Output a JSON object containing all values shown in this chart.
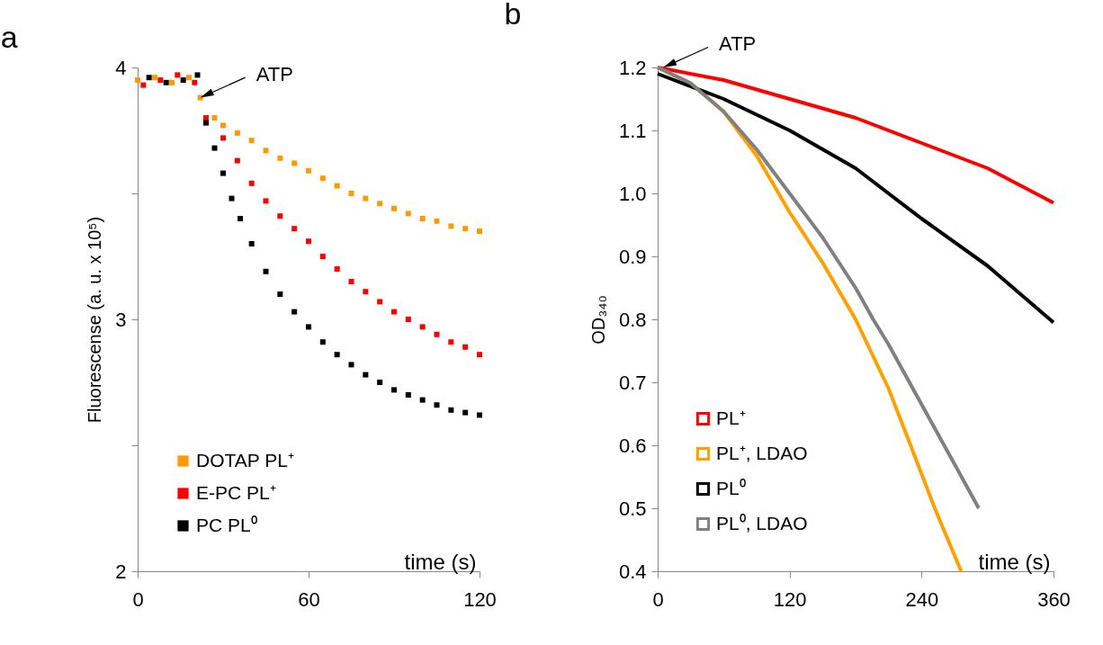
{
  "chart_data": [
    {
      "type": "scatter",
      "title": "a",
      "xlabel": "time (s)",
      "ylabel": "Fluorescense (a. u. x 10⁵)",
      "xlim": [
        0,
        120
      ],
      "ylim": [
        2,
        4
      ],
      "xticks": [
        0,
        60,
        120
      ],
      "yticks": [
        2,
        {
          "value": 2.5,
          "label": null
        },
        3,
        {
          "value": 3.5,
          "label": null
        },
        4
      ],
      "legend": "bottom left",
      "marker": "square",
      "annotations": [
        {
          "text": "ATP",
          "x": 22,
          "y": 3.88
        }
      ],
      "series": [
        {
          "name": "DOTAP PL⁺",
          "color": "#ff9900",
          "x": [
            0,
            6,
            12,
            18,
            22,
            27,
            30,
            35,
            40,
            45,
            50,
            55,
            60,
            65,
            70,
            75,
            80,
            85,
            90,
            95,
            100,
            105,
            110,
            115,
            120
          ],
          "values": [
            3.95,
            3.96,
            3.94,
            3.96,
            3.88,
            3.8,
            3.77,
            3.74,
            3.71,
            3.67,
            3.64,
            3.62,
            3.59,
            3.56,
            3.53,
            3.5,
            3.48,
            3.46,
            3.44,
            3.42,
            3.4,
            3.39,
            3.37,
            3.36,
            3.35
          ]
        },
        {
          "name": "E-PC PL⁺",
          "color": "#ff0000",
          "x": [
            2,
            8,
            14,
            20,
            24,
            30,
            35,
            40,
            45,
            50,
            55,
            60,
            65,
            70,
            75,
            80,
            85,
            90,
            95,
            100,
            105,
            110,
            115,
            120
          ],
          "values": [
            3.93,
            3.95,
            3.97,
            3.94,
            3.8,
            3.72,
            3.63,
            3.54,
            3.47,
            3.41,
            3.36,
            3.31,
            3.25,
            3.2,
            3.15,
            3.11,
            3.07,
            3.03,
            3.0,
            2.97,
            2.94,
            2.91,
            2.89,
            2.86
          ]
        },
        {
          "name": "PC PL⁰",
          "color": "#000000",
          "x": [
            4,
            10,
            16,
            21,
            24,
            27,
            30,
            33,
            36,
            40,
            45,
            50,
            55,
            60,
            65,
            70,
            75,
            80,
            85,
            90,
            95,
            100,
            105,
            110,
            115,
            120
          ],
          "values": [
            3.96,
            3.94,
            3.95,
            3.97,
            3.78,
            3.68,
            3.58,
            3.48,
            3.4,
            3.3,
            3.19,
            3.1,
            3.03,
            2.97,
            2.91,
            2.86,
            2.82,
            2.78,
            2.75,
            2.72,
            2.7,
            2.68,
            2.66,
            2.64,
            2.63,
            2.62
          ]
        }
      ]
    },
    {
      "type": "line",
      "title": "b",
      "xlabel": "time (s)",
      "ylabel": "OD₃₄₀",
      "xlim": [
        0,
        360
      ],
      "ylim": [
        0.4,
        1.2
      ],
      "xticks": [
        0,
        120,
        240,
        360
      ],
      "yticks": [
        0.4,
        0.5,
        0.6,
        0.7,
        0.8,
        0.9,
        {
          "value": 1,
          "label": "1.0"
        },
        1.1,
        1.2
      ],
      "legend": "bottom left",
      "annotations": [
        {
          "text": "ATP",
          "x": 5,
          "y": 1.2
        }
      ],
      "series": [
        {
          "name": "PL⁺",
          "color": "#ff0000",
          "x": [
            0,
            60,
            120,
            180,
            240,
            300,
            360
          ],
          "values": [
            1.2,
            1.18,
            1.15,
            1.12,
            1.08,
            1.04,
            0.985
          ]
        },
        {
          "name": "PL⁺, LDAO",
          "color": "#ffa000",
          "x": [
            0,
            30,
            60,
            90,
            120,
            150,
            180,
            210,
            230,
            252,
            276
          ],
          "values": [
            1.2,
            1.175,
            1.13,
            1.06,
            0.97,
            0.89,
            0.8,
            0.69,
            0.6,
            0.5,
            0.4
          ]
        },
        {
          "name": "PL⁰",
          "color": "#000000",
          "x": [
            0,
            60,
            120,
            180,
            240,
            300,
            360
          ],
          "values": [
            1.19,
            1.15,
            1.1,
            1.04,
            0.96,
            0.885,
            0.795
          ]
        },
        {
          "name": "PL⁰, LDAO",
          "color": "#808080",
          "x": [
            0,
            30,
            60,
            90,
            120,
            150,
            180,
            196,
            210,
            240,
            270,
            292
          ],
          "values": [
            1.2,
            1.175,
            1.13,
            1.07,
            1.0,
            0.93,
            0.85,
            0.8,
            0.76,
            0.665,
            0.57,
            0.5
          ]
        }
      ]
    }
  ]
}
